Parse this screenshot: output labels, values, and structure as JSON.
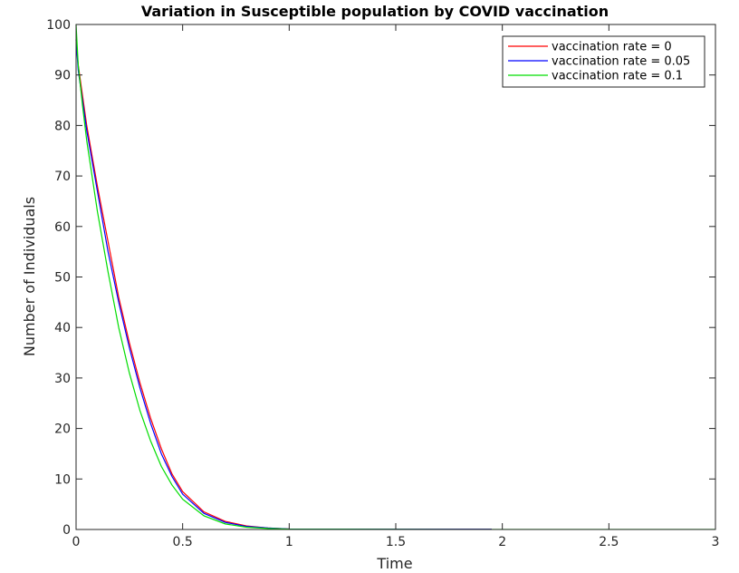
{
  "chart_data": {
    "type": "line",
    "title": "Variation in Susceptible population by COVID vaccination",
    "xlabel": "Time",
    "ylabel": "Number of Individuals",
    "xlim": [
      0,
      3
    ],
    "ylim": [
      0,
      100
    ],
    "xticks": [
      0,
      0.5,
      1,
      1.5,
      2,
      2.5,
      3
    ],
    "xtick_labels": [
      "0",
      "0.5",
      "1",
      "1.5",
      "2",
      "2.5",
      "3"
    ],
    "yticks": [
      0,
      10,
      20,
      30,
      40,
      50,
      60,
      70,
      80,
      90,
      100
    ],
    "ytick_labels": [
      "0",
      "10",
      "20",
      "30",
      "40",
      "50",
      "60",
      "70",
      "80",
      "90",
      "100"
    ],
    "grid": false,
    "legend_position": "top-right",
    "series": [
      {
        "name": "vaccination rate = 0",
        "color": "#ff0000",
        "x": [
          0,
          0.01,
          0.03,
          0.05,
          0.1,
          0.15,
          0.2,
          0.25,
          0.3,
          0.35,
          0.4,
          0.45,
          0.5,
          0.6,
          0.7,
          0.8,
          0.9,
          1.0,
          1.5,
          1.95
        ],
        "y": [
          97,
          92,
          86,
          80,
          68,
          57,
          46,
          37,
          29,
          22,
          16,
          11,
          7.5,
          3.5,
          1.6,
          0.7,
          0.3,
          0.1,
          0.05,
          0.05
        ]
      },
      {
        "name": "vaccination rate = 0.05",
        "color": "#0000ff",
        "x": [
          0,
          0.01,
          0.03,
          0.05,
          0.1,
          0.15,
          0.2,
          0.25,
          0.3,
          0.35,
          0.4,
          0.45,
          0.5,
          0.6,
          0.7,
          0.8,
          0.9,
          1.0,
          1.5,
          1.95
        ],
        "y": [
          97,
          91,
          85,
          79,
          67,
          55,
          45,
          36,
          28,
          21,
          15,
          10.5,
          7,
          3.2,
          1.4,
          0.6,
          0.3,
          0.1,
          0.05,
          0.05
        ]
      },
      {
        "name": "vaccination rate = 0.1",
        "color": "#00dd00",
        "x": [
          0,
          0.01,
          0.03,
          0.05,
          0.1,
          0.15,
          0.2,
          0.25,
          0.3,
          0.35,
          0.4,
          0.45,
          0.5,
          0.6,
          0.7,
          0.8,
          0.9,
          1.0,
          1.5,
          2.0,
          2.5,
          3.0
        ],
        "y": [
          100,
          92,
          84,
          77,
          63,
          51,
          40,
          31,
          23.5,
          17.5,
          12.5,
          8.8,
          6,
          2.7,
          1.1,
          0.45,
          0.2,
          0.08,
          0.02,
          0.01,
          0.01,
          0.01
        ]
      }
    ]
  }
}
